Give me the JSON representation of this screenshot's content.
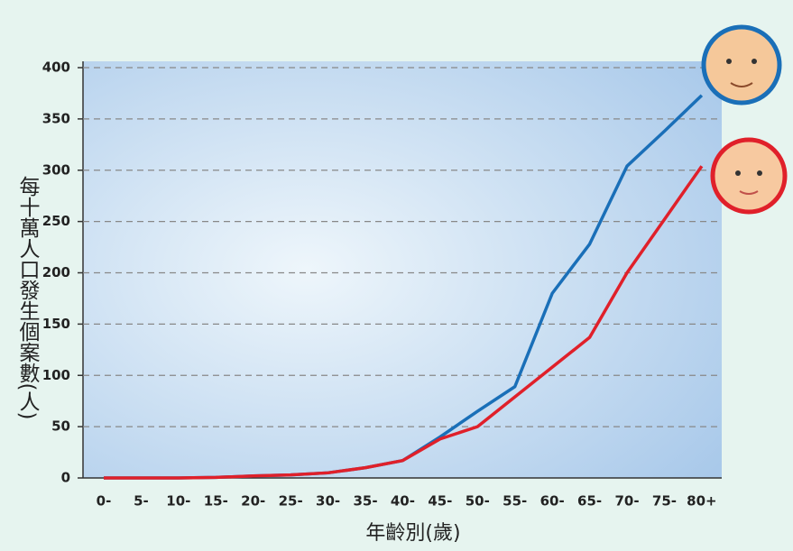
{
  "chart_data": {
    "type": "line",
    "y_label": "每十萬人口發生個案數(人)",
    "x_label": "年齡別(歲)",
    "categories": [
      "0-",
      "5-",
      "10-",
      "15-",
      "20-",
      "25-",
      "30-",
      "35-",
      "40-",
      "45-",
      "50-",
      "55-",
      "60-",
      "65-",
      "70-",
      "75-",
      "80+"
    ],
    "series": [
      {
        "color": "#1a6fb8",
        "values": [
          0,
          0,
          0,
          0.5,
          2,
          3,
          5,
          10,
          17,
          40,
          65,
          89,
          180,
          228,
          304,
          338,
          373
        ]
      },
      {
        "color": "#e0202a",
        "values": [
          0,
          0,
          0,
          0.5,
          2,
          3,
          5,
          10,
          17,
          38,
          50,
          79,
          108,
          137,
          200,
          252,
          304
        ]
      }
    ],
    "ylim": [
      0,
      400
    ],
    "yticks": [
      0,
      50,
      100,
      150,
      200,
      250,
      300,
      350,
      400
    ],
    "grid": true
  }
}
